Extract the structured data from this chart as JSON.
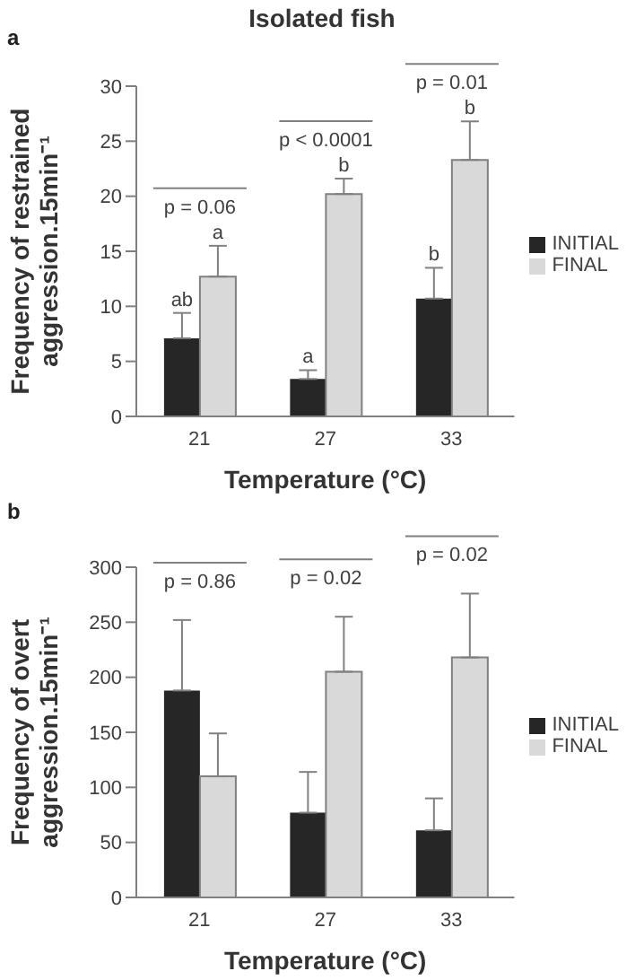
{
  "chart_data": [
    {
      "type": "bar",
      "title": "Isolated fish",
      "xlabel": "Temperature (°C)",
      "ylabel": "Frequency of restrained aggression.15min⁻¹",
      "categories": [
        "21",
        "27",
        "33"
      ],
      "ylim": [
        0,
        30
      ],
      "yticks": [
        0,
        5,
        10,
        15,
        20,
        25,
        30
      ],
      "legend": "right",
      "annotations": [
        "a",
        "p = 0.06",
        "p < 0.0001",
        "p = 0.01"
      ],
      "series": [
        {
          "name": "INITIAL",
          "color": "#262626",
          "values": [
            7.1,
            3.4,
            10.7
          ],
          "errors": [
            [
              7.1,
              9.4
            ],
            [
              3.4,
              4.2
            ],
            [
              10.7,
              13.5
            ]
          ],
          "value_labels": [
            "ab",
            "a",
            "b"
          ]
        },
        {
          "name": "FINAL",
          "color": "#d9d9d9",
          "values": [
            12.7,
            20.2,
            23.3
          ],
          "errors": [
            [
              12.7,
              15.5
            ],
            [
              20.2,
              21.6
            ],
            [
              23.3,
              26.8
            ]
          ],
          "value_labels": [
            "a",
            "b",
            "b"
          ]
        }
      ]
    },
    {
      "type": "bar",
      "xlabel": "Temperature (°C)",
      "ylabel": "Frequency of overt aggression.15min⁻¹",
      "categories": [
        "21",
        "27",
        "33"
      ],
      "ylim": [
        0,
        300
      ],
      "yticks": [
        0,
        50,
        100,
        150,
        200,
        250,
        300
      ],
      "legend": "right",
      "annotations": [
        "b",
        "p = 0.86",
        "p = 0.02",
        "p = 0.02"
      ],
      "series": [
        {
          "name": "INITIAL",
          "color": "#262626",
          "values": [
            188,
            77,
            61
          ],
          "errors": [
            [
              188,
              252
            ],
            [
              77,
              114
            ],
            [
              61,
              90
            ]
          ]
        },
        {
          "name": "FINAL",
          "color": "#d9d9d9",
          "values": [
            110,
            205,
            218
          ],
          "errors": [
            [
              110,
              149
            ],
            [
              205,
              255
            ],
            [
              218,
              276
            ]
          ]
        }
      ]
    }
  ]
}
